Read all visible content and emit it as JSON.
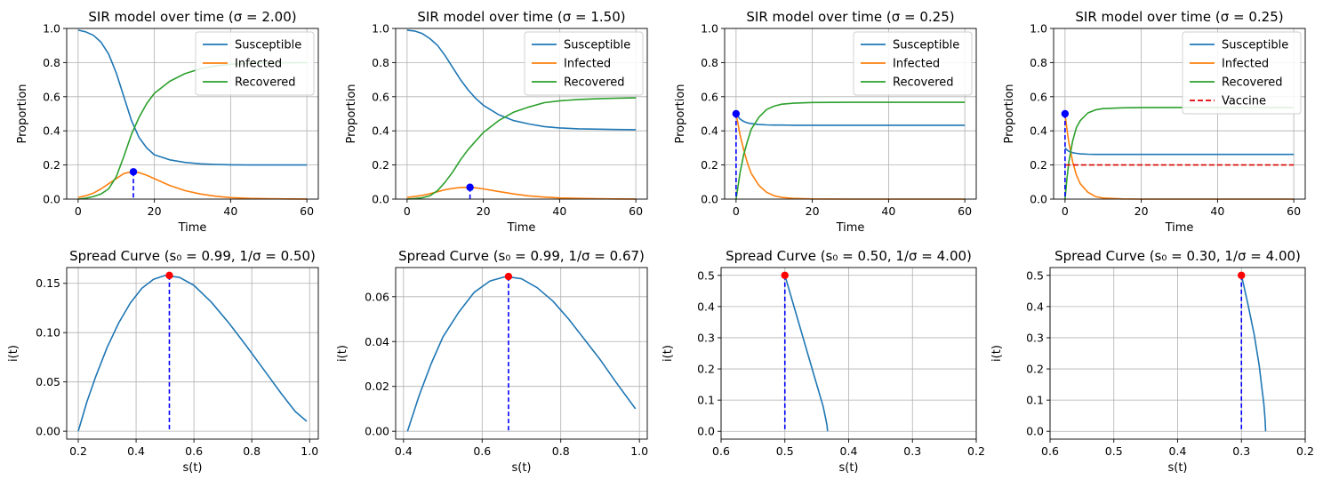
{
  "colors": {
    "susceptible": "#1f77b4",
    "infected": "#ff7f0e",
    "recovered": "#2ca02c",
    "vaccine": "#e00000",
    "peak_marker": "#0000ff",
    "spread_peak": "#ff0000",
    "grid": "#b0b0b0"
  },
  "chart_data": [
    {
      "id": "sir1",
      "type": "line",
      "title": "SIR model over time (σ = 2.00)",
      "xlabel": "Time",
      "ylabel": "Proportion",
      "xlim": [
        -3,
        63
      ],
      "ylim": [
        0,
        1
      ],
      "xticks": [
        0,
        20,
        40,
        60
      ],
      "yticks": [
        0,
        0.2,
        0.4,
        0.6,
        0.8,
        1.0
      ],
      "xtick_labels": [
        "0",
        "20",
        "40",
        "60"
      ],
      "ytick_labels": [
        "0.0",
        "0.2",
        "0.4",
        "0.6",
        "0.8",
        "1.0"
      ],
      "grid": true,
      "legend": "top-right",
      "x": [
        0,
        2,
        4,
        6,
        8,
        10,
        12,
        14,
        16,
        18,
        20,
        24,
        28,
        32,
        36,
        40,
        45,
        50,
        55,
        60
      ],
      "series": [
        {
          "name": "Susceptible",
          "color_key": "susceptible",
          "values": [
            0.99,
            0.98,
            0.96,
            0.92,
            0.85,
            0.74,
            0.6,
            0.46,
            0.36,
            0.3,
            0.26,
            0.23,
            0.215,
            0.207,
            0.203,
            0.201,
            0.2,
            0.2,
            0.2,
            0.2
          ]
        },
        {
          "name": "Infected",
          "color_key": "infected",
          "values": [
            0.01,
            0.02,
            0.035,
            0.06,
            0.09,
            0.12,
            0.15,
            0.16,
            0.155,
            0.14,
            0.12,
            0.08,
            0.05,
            0.03,
            0.017,
            0.009,
            0.004,
            0.002,
            0.001,
            0.0005
          ]
        },
        {
          "name": "Recovered",
          "color_key": "recovered",
          "values": [
            0.0,
            0.005,
            0.015,
            0.03,
            0.06,
            0.13,
            0.25,
            0.38,
            0.48,
            0.56,
            0.62,
            0.69,
            0.735,
            0.763,
            0.78,
            0.79,
            0.795,
            0.798,
            0.799,
            0.8
          ]
        }
      ],
      "peak": {
        "x": 14.5,
        "y": 0.16
      }
    },
    {
      "id": "sir2",
      "type": "line",
      "title": "SIR model over time (σ = 1.50)",
      "xlabel": "Time",
      "ylabel": "Proportion",
      "xlim": [
        -3,
        63
      ],
      "ylim": [
        0,
        1
      ],
      "xticks": [
        0,
        20,
        40,
        60
      ],
      "yticks": [
        0,
        0.2,
        0.4,
        0.6,
        0.8,
        1.0
      ],
      "xtick_labels": [
        "0",
        "20",
        "40",
        "60"
      ],
      "ytick_labels": [
        "0.0",
        "0.2",
        "0.4",
        "0.6",
        "0.8",
        "1.0"
      ],
      "grid": true,
      "legend": "top-right",
      "x": [
        0,
        2,
        4,
        6,
        8,
        10,
        12,
        14,
        16,
        18,
        20,
        24,
        28,
        32,
        36,
        40,
        45,
        50,
        55,
        60
      ],
      "series": [
        {
          "name": "Susceptible",
          "color_key": "susceptible",
          "values": [
            0.99,
            0.985,
            0.97,
            0.94,
            0.9,
            0.84,
            0.77,
            0.7,
            0.64,
            0.59,
            0.55,
            0.495,
            0.46,
            0.44,
            0.425,
            0.417,
            0.412,
            0.41,
            0.408,
            0.407
          ]
        },
        {
          "name": "Infected",
          "color_key": "infected",
          "values": [
            0.01,
            0.015,
            0.022,
            0.032,
            0.043,
            0.055,
            0.063,
            0.068,
            0.069,
            0.066,
            0.06,
            0.045,
            0.03,
            0.019,
            0.012,
            0.007,
            0.004,
            0.002,
            0.001,
            0.0005
          ]
        },
        {
          "name": "Recovered",
          "color_key": "recovered",
          "values": [
            0.0,
            0.003,
            0.008,
            0.02,
            0.05,
            0.1,
            0.16,
            0.23,
            0.29,
            0.34,
            0.39,
            0.46,
            0.51,
            0.54,
            0.565,
            0.576,
            0.584,
            0.588,
            0.591,
            0.593
          ]
        }
      ],
      "peak": {
        "x": 16.5,
        "y": 0.069
      }
    },
    {
      "id": "sir3",
      "type": "line",
      "title": "SIR model over time (σ = 0.25)",
      "xlabel": "Time",
      "ylabel": "Proportion",
      "xlim": [
        -3,
        63
      ],
      "ylim": [
        0,
        1
      ],
      "xticks": [
        0,
        20,
        40,
        60
      ],
      "yticks": [
        0,
        0.2,
        0.4,
        0.6,
        0.8,
        1.0
      ],
      "xtick_labels": [
        "0",
        "20",
        "40",
        "60"
      ],
      "ytick_labels": [
        "0.0",
        "0.2",
        "0.4",
        "0.6",
        "0.8",
        "1.0"
      ],
      "grid": true,
      "legend": "top-right",
      "x": [
        0,
        1,
        2,
        3,
        4,
        6,
        8,
        10,
        12,
        15,
        20,
        30,
        40,
        50,
        60
      ],
      "series": [
        {
          "name": "Susceptible",
          "color_key": "susceptible",
          "values": [
            0.5,
            0.47,
            0.455,
            0.447,
            0.442,
            0.437,
            0.435,
            0.434,
            0.434,
            0.433,
            0.433,
            0.433,
            0.433,
            0.433,
            0.433
          ]
        },
        {
          "name": "Infected",
          "color_key": "infected",
          "values": [
            0.5,
            0.38,
            0.29,
            0.21,
            0.15,
            0.08,
            0.04,
            0.02,
            0.01,
            0.004,
            0.001,
            0.0,
            0.0,
            0.0,
            0.0
          ]
        },
        {
          "name": "Recovered",
          "color_key": "recovered",
          "values": [
            0.0,
            0.15,
            0.26,
            0.34,
            0.41,
            0.48,
            0.525,
            0.545,
            0.556,
            0.562,
            0.566,
            0.567,
            0.567,
            0.567,
            0.567
          ]
        }
      ],
      "peak": {
        "x": 0,
        "y": 0.5
      }
    },
    {
      "id": "sir4",
      "type": "line",
      "title": "SIR model over time (σ = 0.25)",
      "xlabel": "Time",
      "ylabel": "Proportion",
      "xlim": [
        -3,
        63
      ],
      "ylim": [
        0,
        1
      ],
      "xticks": [
        0,
        20,
        40,
        60
      ],
      "yticks": [
        0,
        0.2,
        0.4,
        0.6,
        0.8,
        1.0
      ],
      "xtick_labels": [
        "0",
        "20",
        "40",
        "60"
      ],
      "ytick_labels": [
        "0.0",
        "0.2",
        "0.4",
        "0.6",
        "0.8",
        "1.0"
      ],
      "grid": true,
      "legend": "top-right",
      "x": [
        0,
        0.5,
        1,
        2,
        3,
        4,
        6,
        8,
        10,
        15,
        20,
        30,
        40,
        50,
        60
      ],
      "series": [
        {
          "name": "Susceptible",
          "color_key": "susceptible",
          "values": [
            0.3,
            0.288,
            0.28,
            0.272,
            0.268,
            0.265,
            0.263,
            0.262,
            0.262,
            0.262,
            0.262,
            0.262,
            0.262,
            0.262,
            0.262
          ]
        },
        {
          "name": "Infected",
          "color_key": "infected",
          "values": [
            0.5,
            0.41,
            0.33,
            0.22,
            0.14,
            0.09,
            0.04,
            0.015,
            0.006,
            0.001,
            0.0,
            0.0,
            0.0,
            0.0,
            0.0
          ]
        },
        {
          "name": "Recovered",
          "color_key": "recovered",
          "values": [
            0.0,
            0.12,
            0.22,
            0.34,
            0.42,
            0.46,
            0.505,
            0.523,
            0.53,
            0.535,
            0.536,
            0.537,
            0.537,
            0.537,
            0.537
          ]
        },
        {
          "name": "Vaccine",
          "color_key": "vaccine",
          "dashed": true,
          "values": [
            0.2,
            0.2,
            0.2,
            0.2,
            0.2,
            0.2,
            0.2,
            0.2,
            0.2,
            0.2,
            0.2,
            0.2,
            0.2,
            0.2,
            0.2
          ]
        }
      ],
      "peak": {
        "x": 0,
        "y": 0.5
      }
    },
    {
      "id": "sp1",
      "type": "line",
      "title": "Spread Curve (s₀ = 0.99, 1/σ = 0.50)",
      "xlabel": "s(t)",
      "ylabel": "i(t)",
      "xlim": [
        0.16,
        1.03
      ],
      "ylim": [
        -0.008,
        0.166
      ],
      "xticks": [
        0.2,
        0.4,
        0.6,
        0.8,
        1.0
      ],
      "yticks": [
        0,
        0.05,
        0.1,
        0.15
      ],
      "xtick_labels": [
        "0.2",
        "0.4",
        "0.6",
        "0.8",
        "1.0"
      ],
      "ytick_labels": [
        "0.00",
        "0.05",
        "0.10",
        "0.15"
      ],
      "grid": true,
      "x": [
        0.2,
        0.23,
        0.26,
        0.3,
        0.34,
        0.38,
        0.42,
        0.46,
        0.5,
        0.55,
        0.6,
        0.66,
        0.72,
        0.78,
        0.84,
        0.9,
        0.95,
        0.99
      ],
      "series": [
        {
          "name": "",
          "color_key": "susceptible",
          "values": [
            0.0,
            0.03,
            0.055,
            0.085,
            0.11,
            0.13,
            0.145,
            0.154,
            0.158,
            0.156,
            0.148,
            0.131,
            0.11,
            0.087,
            0.063,
            0.039,
            0.02,
            0.01
          ]
        }
      ],
      "peak": {
        "x": 0.515,
        "y": 0.158
      }
    },
    {
      "id": "sp2",
      "type": "line",
      "title": "Spread Curve (s₀ = 0.99, 1/σ = 0.67)",
      "xlabel": "s(t)",
      "ylabel": "i(t)",
      "xlim": [
        0.38,
        1.02
      ],
      "ylim": [
        -0.0035,
        0.073
      ],
      "xticks": [
        0.4,
        0.6,
        0.8,
        1.0
      ],
      "yticks": [
        0,
        0.02,
        0.04,
        0.06
      ],
      "xtick_labels": [
        "0.4",
        "0.6",
        "0.8",
        "1.0"
      ],
      "ytick_labels": [
        "0.00",
        "0.02",
        "0.04",
        "0.06"
      ],
      "grid": true,
      "x": [
        0.41,
        0.44,
        0.47,
        0.5,
        0.54,
        0.58,
        0.62,
        0.66,
        0.7,
        0.74,
        0.78,
        0.82,
        0.86,
        0.9,
        0.94,
        0.99
      ],
      "series": [
        {
          "name": "",
          "color_key": "susceptible",
          "values": [
            0.0,
            0.016,
            0.03,
            0.042,
            0.053,
            0.062,
            0.067,
            0.069,
            0.068,
            0.064,
            0.058,
            0.05,
            0.041,
            0.032,
            0.022,
            0.01
          ]
        }
      ],
      "peak": {
        "x": 0.667,
        "y": 0.069
      }
    },
    {
      "id": "sp3",
      "type": "line",
      "title": "Spread Curve (s₀ = 0.50, 1/σ = 4.00)",
      "xlabel": "s(t)",
      "ylabel": "i(t)",
      "xlim": [
        0.6,
        0.2
      ],
      "ylim": [
        -0.025,
        0.525
      ],
      "xticks": [
        0.6,
        0.5,
        0.4,
        0.3,
        0.2
      ],
      "yticks": [
        0,
        0.1,
        0.2,
        0.3,
        0.4,
        0.5
      ],
      "xtick_labels": [
        "0.6",
        "0.5",
        "0.4",
        "0.3",
        "0.2"
      ],
      "ytick_labels": [
        "0.0",
        "0.1",
        "0.2",
        "0.3",
        "0.4",
        "0.5"
      ],
      "grid": true,
      "x": [
        0.5,
        0.48,
        0.46,
        0.45,
        0.44,
        0.437,
        0.434,
        0.433
      ],
      "series": [
        {
          "name": "",
          "color_key": "susceptible",
          "values": [
            0.5,
            0.36,
            0.22,
            0.15,
            0.08,
            0.05,
            0.02,
            0.0
          ]
        }
      ],
      "peak": {
        "x": 0.5,
        "y": 0.5
      }
    },
    {
      "id": "sp4",
      "type": "line",
      "title": "Spread Curve (s₀ = 0.30, 1/σ = 4.00)",
      "xlabel": "s(t)",
      "ylabel": "i(t)",
      "xlim": [
        0.6,
        0.2
      ],
      "ylim": [
        -0.025,
        0.525
      ],
      "xticks": [
        0.6,
        0.5,
        0.4,
        0.3,
        0.2
      ],
      "yticks": [
        0,
        0.1,
        0.2,
        0.3,
        0.4,
        0.5
      ],
      "xtick_labels": [
        "0.6",
        "0.5",
        "0.4",
        "0.3",
        "0.2"
      ],
      "ytick_labels": [
        "0.0",
        "0.1",
        "0.2",
        "0.3",
        "0.4",
        "0.5"
      ],
      "grid": true,
      "x": [
        0.3,
        0.29,
        0.28,
        0.272,
        0.268,
        0.265,
        0.263,
        0.262
      ],
      "series": [
        {
          "name": "",
          "color_key": "susceptible",
          "values": [
            0.5,
            0.41,
            0.31,
            0.21,
            0.14,
            0.09,
            0.04,
            0.0
          ]
        }
      ],
      "peak": {
        "x": 0.3,
        "y": 0.5
      }
    }
  ]
}
